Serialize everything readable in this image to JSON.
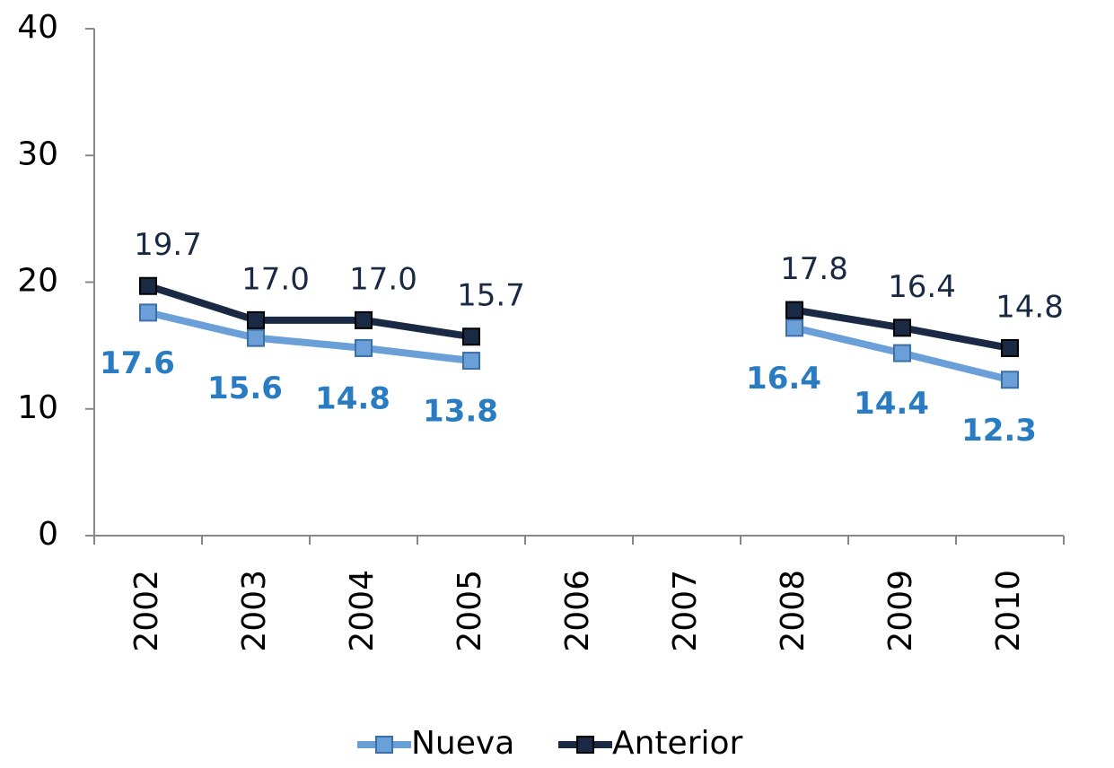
{
  "chart_data": {
    "type": "line",
    "categories": [
      "2002",
      "2003",
      "2004",
      "2005",
      "2006",
      "2007",
      "2008",
      "2009",
      "2010"
    ],
    "series": [
      {
        "name": "Nueva",
        "color": "#6a9fd8",
        "label_color": "#2a7cc2",
        "values": [
          17.6,
          15.6,
          14.8,
          13.8,
          null,
          null,
          16.4,
          14.4,
          12.3
        ],
        "value_labels": [
          "17.6",
          "15.6",
          "14.8",
          "13.8",
          null,
          null,
          "16.4",
          "14.4",
          "12.3"
        ]
      },
      {
        "name": "Anterior",
        "color": "#1b2a44",
        "label_color": "#1b2a44",
        "values": [
          19.7,
          17.0,
          17.0,
          15.7,
          null,
          null,
          17.8,
          16.4,
          14.8
        ],
        "value_labels": [
          "19.7",
          "17.0",
          "17.0",
          "15.7",
          null,
          null,
          "17.8",
          "16.4",
          "14.8"
        ]
      }
    ],
    "ylim": [
      0,
      40
    ],
    "yticks": [
      0,
      10,
      20,
      30,
      40
    ],
    "grid": false,
    "legend": "bottom"
  }
}
